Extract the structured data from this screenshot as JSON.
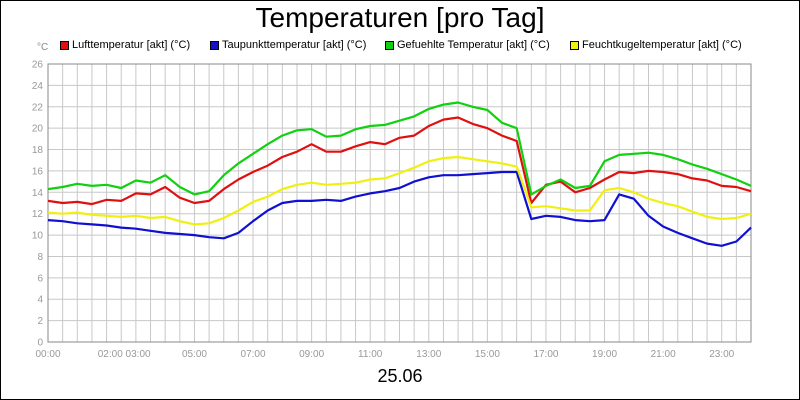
{
  "chart_data": {
    "type": "line",
    "title": "Temperaturen [pro Tag]",
    "unit_label": "°C",
    "date_label": "25.06",
    "ylim": [
      0,
      26
    ],
    "yticks": [
      "0",
      "2",
      "4",
      "6",
      "8",
      "10",
      "12",
      "14",
      "16",
      "18",
      "20",
      "22",
      "24",
      "26"
    ],
    "xlim": [
      0,
      24
    ],
    "xticks": [
      {
        "x": 0,
        "label": "00:00"
      },
      {
        "x": 2.6,
        "label": "02:00 03:00"
      },
      {
        "x": 5,
        "label": "05:00"
      },
      {
        "x": 7,
        "label": "07:00"
      },
      {
        "x": 9,
        "label": "09:00"
      },
      {
        "x": 11,
        "label": "11:00"
      },
      {
        "x": 13,
        "label": "13:00"
      },
      {
        "x": 15,
        "label": "15:00"
      },
      {
        "x": 17,
        "label": "17:00"
      },
      {
        "x": 19,
        "label": "19:00"
      },
      {
        "x": 21,
        "label": "21:00"
      },
      {
        "x": 23,
        "label": "23:00"
      }
    ],
    "grid": true,
    "legend_position": "top",
    "x": [
      0,
      0.5,
      1,
      1.5,
      2,
      2.5,
      3,
      3.5,
      4,
      4.5,
      5,
      5.5,
      6,
      6.5,
      7,
      7.5,
      8,
      8.5,
      9,
      9.5,
      10,
      10.5,
      11,
      11.5,
      12,
      12.5,
      13,
      13.5,
      14,
      14.5,
      15,
      15.5,
      16,
      16.5,
      17,
      17.5,
      18,
      18.5,
      19,
      19.5,
      20,
      20.5,
      21,
      21.5,
      22,
      22.5,
      23,
      23.5,
      24
    ],
    "series": [
      {
        "name": "Lufttemperatur [akt] (°C)",
        "color": "#e01010",
        "values": [
          13.2,
          13.0,
          13.1,
          12.9,
          13.3,
          13.2,
          13.9,
          13.8,
          14.5,
          13.5,
          13.0,
          13.2,
          14.3,
          15.2,
          15.9,
          16.5,
          17.3,
          17.8,
          18.5,
          17.8,
          17.8,
          18.3,
          18.7,
          18.5,
          19.1,
          19.3,
          20.2,
          20.8,
          21.0,
          20.4,
          20.0,
          19.3,
          18.8,
          13.0,
          14.7,
          15.0,
          14.0,
          14.4,
          15.2,
          15.9,
          15.8,
          16.0,
          15.9,
          15.7,
          15.3,
          15.1,
          14.6,
          14.5,
          14.1
        ]
      },
      {
        "name": "Taupunkttemperatur [akt] (°C)",
        "color": "#1010d0",
        "values": [
          11.4,
          11.3,
          11.1,
          11.0,
          10.9,
          10.7,
          10.6,
          10.4,
          10.2,
          10.1,
          10.0,
          9.8,
          9.7,
          10.2,
          11.3,
          12.3,
          13.0,
          13.2,
          13.2,
          13.3,
          13.2,
          13.6,
          13.9,
          14.1,
          14.4,
          15.0,
          15.4,
          15.6,
          15.6,
          15.7,
          15.8,
          15.9,
          15.9,
          11.5,
          11.8,
          11.7,
          11.4,
          11.3,
          11.4,
          13.8,
          13.4,
          11.8,
          10.8,
          10.2,
          9.7,
          9.2,
          9.0,
          9.4,
          10.7
        ]
      },
      {
        "name": "Gefuehlte Temperatur [akt] (°C)",
        "color": "#10d010",
        "values": [
          14.3,
          14.5,
          14.8,
          14.6,
          14.7,
          14.4,
          15.1,
          14.9,
          15.6,
          14.5,
          13.8,
          14.1,
          15.6,
          16.7,
          17.6,
          18.5,
          19.3,
          19.8,
          19.9,
          19.2,
          19.3,
          19.9,
          20.2,
          20.3,
          20.7,
          21.1,
          21.8,
          22.2,
          22.4,
          22.0,
          21.7,
          20.5,
          20.0,
          13.8,
          14.6,
          15.2,
          14.4,
          14.6,
          16.9,
          17.5,
          17.6,
          17.7,
          17.5,
          17.1,
          16.6,
          16.2,
          15.7,
          15.2,
          14.6
        ]
      },
      {
        "name": "Feuchtkugeltemperatur [akt] (°C)",
        "color": "#f0f010",
        "values": [
          12.1,
          12.0,
          12.1,
          11.9,
          11.8,
          11.7,
          11.8,
          11.6,
          11.7,
          11.3,
          11.0,
          11.1,
          11.6,
          12.3,
          13.1,
          13.6,
          14.3,
          14.7,
          14.9,
          14.7,
          14.8,
          14.9,
          15.2,
          15.3,
          15.8,
          16.3,
          16.9,
          17.2,
          17.3,
          17.1,
          16.9,
          16.7,
          16.4,
          12.6,
          12.7,
          12.5,
          12.3,
          12.3,
          14.2,
          14.4,
          14.0,
          13.4,
          13.0,
          12.7,
          12.2,
          11.7,
          11.5,
          11.6,
          12.0
        ]
      }
    ]
  }
}
